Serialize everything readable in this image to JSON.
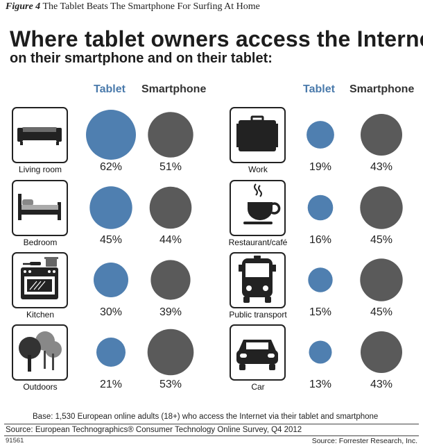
{
  "figure": {
    "number": "Figure 4",
    "caption": "The Tablet Beats The Smartphone For Surfing At Home"
  },
  "chart_data": {
    "type": "bubble",
    "title": "Where tablet owners access the Internet",
    "subtitle": "on their smartphone and on their tablet:",
    "series": [
      {
        "name": "Tablet",
        "color": "#4f7fb0"
      },
      {
        "name": "Smartphone",
        "color": "#5a5a5a"
      }
    ],
    "unit": "%",
    "locations": [
      {
        "label": "Living room",
        "icon": "sofa-icon",
        "tablet": 62,
        "smartphone": 51
      },
      {
        "label": "Bedroom",
        "icon": "bed-icon",
        "tablet": 45,
        "smartphone": 44
      },
      {
        "label": "Kitchen",
        "icon": "stove-icon",
        "tablet": 30,
        "smartphone": 39
      },
      {
        "label": "Outdoors",
        "icon": "trees-icon",
        "tablet": 21,
        "smartphone": 53
      },
      {
        "label": "Work",
        "icon": "briefcase-icon",
        "tablet": 19,
        "smartphone": 43
      },
      {
        "label": "Restaurant/café",
        "icon": "coffee-cup-icon",
        "tablet": 16,
        "smartphone": 45
      },
      {
        "label": "Public transport",
        "icon": "bus-icon",
        "tablet": 15,
        "smartphone": 45
      },
      {
        "label": "Car",
        "icon": "car-icon",
        "tablet": 13,
        "smartphone": 43
      }
    ]
  },
  "footer": {
    "base": "Base: 1,530 European online adults (18+) who access the Internet via their tablet and smartphone",
    "source": "Source: European Technographics® Consumer Technology Online Survey, Q4 2012",
    "code": "91561",
    "credit": "Source: Forrester Research, Inc."
  }
}
